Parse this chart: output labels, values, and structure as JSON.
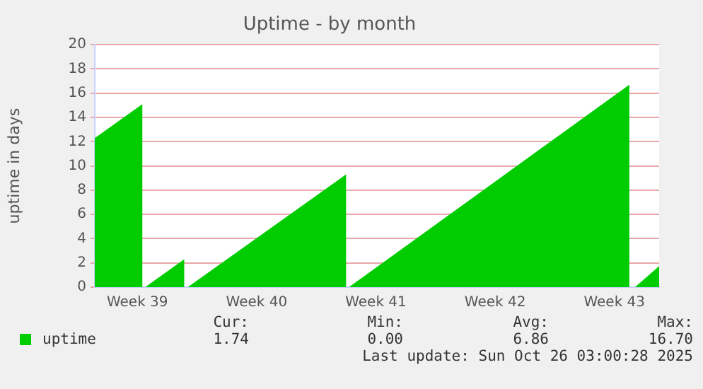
{
  "chart_data": {
    "type": "area",
    "title": "Uptime - by month",
    "ylabel": "uptime in days",
    "x": [
      "2025-09-23T00:00",
      "2025-09-25T19:00",
      "2025-09-25T19:00",
      "2025-09-25T23:00",
      "2025-09-28T06:00",
      "2025-09-28T06:00",
      "2025-09-28T11:00",
      "2025-10-07T18:00",
      "2025-10-07T18:00",
      "2025-10-07T22:00",
      "2025-10-24T09:00",
      "2025-10-24T09:00",
      "2025-10-24T17:00",
      "2025-10-26T03:00"
    ],
    "series": [
      {
        "name": "uptime",
        "color": "#00cc00",
        "values": [
          12.3,
          15.1,
          0,
          0,
          2.3,
          0,
          0,
          9.3,
          0,
          0,
          16.7,
          0,
          0,
          1.74
        ]
      }
    ],
    "xlim": [
      "2025-09-23T00:00",
      "2025-10-26T03:00"
    ],
    "xticks": [
      {
        "value": "2025-09-25T12:00",
        "label": "Week 39"
      },
      {
        "value": "2025-10-02T12:00",
        "label": "Week 40"
      },
      {
        "value": "2025-10-09T12:00",
        "label": "Week 41"
      },
      {
        "value": "2025-10-16T12:00",
        "label": "Week 42"
      },
      {
        "value": "2025-10-23T12:00",
        "label": "Week 43"
      }
    ],
    "ylim": [
      0,
      20
    ],
    "yticks": [
      0,
      2,
      4,
      6,
      8,
      10,
      12,
      14,
      16,
      18,
      20
    ],
    "grid": "y",
    "legend": "bottom left",
    "annotations": [
      "Cur:",
      "Min:",
      "Avg:",
      "Max:",
      "1.74",
      "0.00",
      "6.86",
      "16.70",
      "Last update: Sun Oct 26 03:00:28 2025"
    ]
  }
}
